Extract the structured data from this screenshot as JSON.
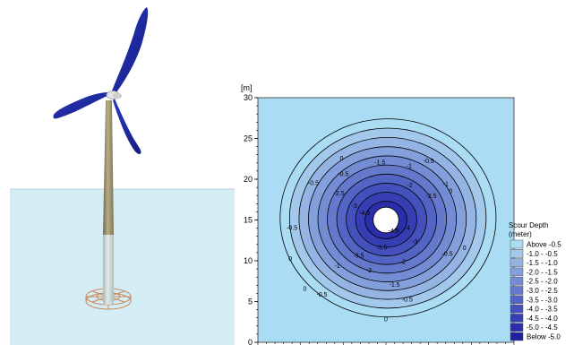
{
  "turbine_scene": {
    "water_color": "#d4ecf4",
    "blade_color": "#1f2a9e",
    "tower_color": "#9a9068",
    "pile_color": "#c8d7d5",
    "ring_color": "#c98a60"
  },
  "chart_data": {
    "type": "heatmap",
    "title": "",
    "xlabel": "",
    "ylabel": "[m]",
    "ylim": [
      0,
      30
    ],
    "yticks": [
      "0",
      "5",
      "10",
      "15",
      "20",
      "25",
      "30"
    ],
    "pile_center": [
      15,
      15
    ],
    "pile_radius": 1.5,
    "background_color": "#aadcf4",
    "contour_levels": [
      -0.5,
      -1.0,
      -1.5,
      -2.0,
      -2.5,
      -3.0,
      -3.5,
      -4.0,
      -4.5
    ],
    "contour_labels": [
      {
        "text": "0",
        "x": 9.8,
        "y": 22.5
      },
      {
        "text": "0",
        "x": 3.8,
        "y": 10.2
      },
      {
        "text": "0",
        "x": 5.5,
        "y": 6.5
      },
      {
        "text": "0",
        "x": 22.6,
        "y": 18.5
      },
      {
        "text": "0",
        "x": 24.2,
        "y": 11.5
      },
      {
        "text": "0",
        "x": 15.0,
        "y": 2.8
      },
      {
        "text": "-0.5",
        "x": 10.0,
        "y": 20.6
      },
      {
        "text": "-0.5",
        "x": 6.5,
        "y": 19.5
      },
      {
        "text": "-0.5",
        "x": 4.0,
        "y": 14.0
      },
      {
        "text": "-0.5",
        "x": 20.0,
        "y": 22.2
      },
      {
        "text": "-0.5",
        "x": 22.2,
        "y": 10.8
      },
      {
        "text": "-0.5",
        "x": 17.5,
        "y": 5.2
      },
      {
        "text": "-0.5",
        "x": 7.5,
        "y": 5.8
      },
      {
        "text": "-1.5",
        "x": 14.3,
        "y": 22.0
      },
      {
        "text": "-1",
        "x": 17.7,
        "y": 21.6
      },
      {
        "text": "-1",
        "x": 22.0,
        "y": 19.4
      },
      {
        "text": "-1",
        "x": 9.3,
        "y": 9.3
      },
      {
        "text": "-1.5",
        "x": 16.0,
        "y": 7.0
      },
      {
        "text": "-2.5",
        "x": 9.5,
        "y": 18.2
      },
      {
        "text": "-2.5",
        "x": 20.3,
        "y": 17.9
      },
      {
        "text": "-2",
        "x": 17.8,
        "y": 19.2
      },
      {
        "text": "-2",
        "x": 13.0,
        "y": 8.8
      },
      {
        "text": "-2",
        "x": 17.0,
        "y": 9.8
      },
      {
        "text": "-3.5",
        "x": 11.8,
        "y": 10.6
      },
      {
        "text": "-3.5",
        "x": 14.5,
        "y": 11.6
      },
      {
        "text": "-3",
        "x": 11.3,
        "y": 16.7
      },
      {
        "text": "-4.5",
        "x": 12.5,
        "y": 15.8
      },
      {
        "text": "-4",
        "x": 17.5,
        "y": 14.0
      },
      {
        "text": "-4.5",
        "x": 15.9,
        "y": 13.6
      },
      {
        "text": "-3",
        "x": 18.4,
        "y": 12.3
      }
    ],
    "legend": {
      "title_line1": "Scour Depth",
      "title_line2": "(meter)",
      "entries": [
        {
          "label": "Above -0.5",
          "color": "#aadcf4"
        },
        {
          "label": "-1.0 - -0.5",
          "color": "#a2c8ec"
        },
        {
          "label": "-1.5 - -1.0",
          "color": "#94b4e4"
        },
        {
          "label": "-2.0 - -1.5",
          "color": "#84a0dc"
        },
        {
          "label": "-2.5 - -2.0",
          "color": "#748cd4"
        },
        {
          "label": "-3.0 - -2.5",
          "color": "#6478cc"
        },
        {
          "label": "-3.5 - -3.0",
          "color": "#5464c4"
        },
        {
          "label": "-4.0 - -3.5",
          "color": "#4450bc"
        },
        {
          "label": "-4.5 - -4.0",
          "color": "#363eb4"
        },
        {
          "label": "-5.0 - -4.5",
          "color": "#2a2eaa"
        },
        {
          "label": "Below -5.0",
          "color": "#1e20a0"
        }
      ]
    }
  }
}
